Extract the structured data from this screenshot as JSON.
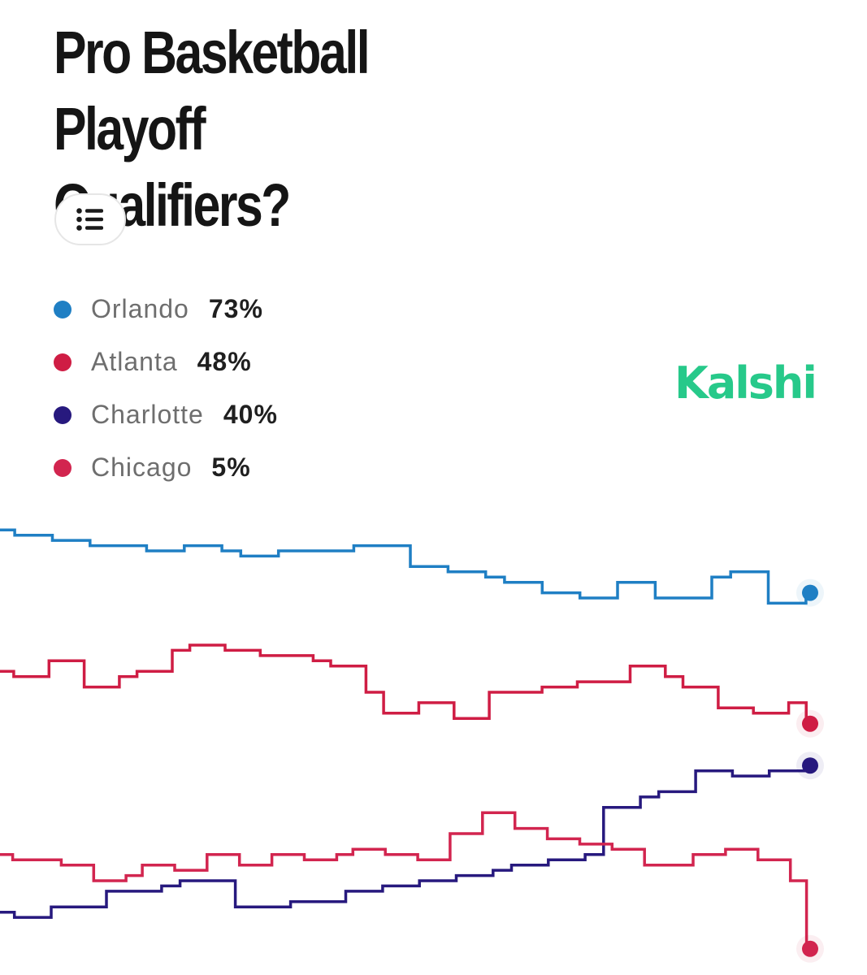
{
  "title_line1": "Pro Basketball Playoff",
  "title_line2": "Qualifiers?",
  "list_button_icon": "list-icon",
  "brand": "Kalshi",
  "chart_data": {
    "type": "line",
    "title": "Pro Basketball Playoff Qualifiers?",
    "xlabel": "",
    "ylabel": "",
    "ylim": [
      0,
      100
    ],
    "grid": false,
    "legend_position": "top-left",
    "series": [
      {
        "name": "Orlando",
        "label": "73%",
        "current": 73,
        "color": "#1f7fc4",
        "values": [
          85,
          84,
          84,
          83,
          83,
          82,
          82,
          82,
          81,
          81,
          82,
          82,
          81,
          80,
          80,
          81,
          81,
          81,
          81,
          82,
          82,
          82,
          78,
          78,
          77,
          77,
          76,
          75,
          75,
          73,
          73,
          72,
          72,
          75,
          75,
          72,
          72,
          72,
          76,
          77,
          77,
          71,
          71,
          73
        ]
      },
      {
        "name": "Atlanta",
        "label": "48%",
        "current": 48,
        "color": "#cf1d44",
        "values": [
          58,
          57,
          57,
          60,
          60,
          55,
          55,
          57,
          58,
          58,
          62,
          63,
          63,
          62,
          62,
          61,
          61,
          61,
          60,
          59,
          59,
          54,
          50,
          50,
          52,
          52,
          49,
          49,
          54,
          54,
          54,
          55,
          55,
          56,
          56,
          56,
          59,
          59,
          57,
          55,
          55,
          51,
          51,
          50,
          50,
          52,
          48
        ]
      },
      {
        "name": "Charlotte",
        "label": "40%",
        "current": 40,
        "color": "#27197e",
        "values": [
          12,
          11,
          11,
          13,
          13,
          13,
          16,
          16,
          16,
          17,
          18,
          18,
          18,
          13,
          13,
          13,
          14,
          14,
          14,
          16,
          16,
          17,
          17,
          18,
          18,
          19,
          19,
          20,
          21,
          21,
          22,
          22,
          23,
          32,
          32,
          34,
          35,
          35,
          39,
          39,
          38,
          38,
          39,
          39,
          40
        ]
      },
      {
        "name": "Chicago",
        "label": "5%",
        "current": 5,
        "color": "#d2254f",
        "values": [
          23,
          22,
          22,
          22,
          21,
          21,
          18,
          18,
          19,
          21,
          21,
          20,
          20,
          23,
          23,
          21,
          21,
          23,
          23,
          22,
          22,
          23,
          24,
          24,
          23,
          23,
          22,
          22,
          27,
          27,
          31,
          31,
          28,
          28,
          26,
          26,
          25,
          25,
          24,
          24,
          21,
          21,
          21,
          23,
          23,
          24,
          24,
          22,
          22,
          18,
          5
        ]
      }
    ]
  }
}
